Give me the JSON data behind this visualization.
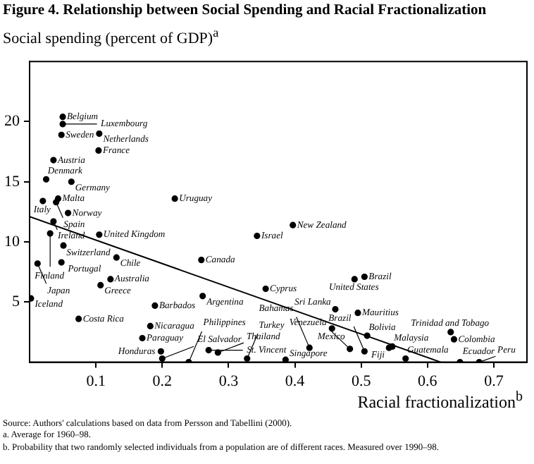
{
  "chart_data": {
    "type": "scatter",
    "title": "Figure 4.  Relationship between Social Spending and Racial Fractionalization",
    "xlabel": "Racial fractionalization$^{b}$",
    "ylabel": "Social spending (percent of GDP)$^{a}$",
    "xlim": [
      0,
      0.75
    ],
    "ylim": [
      0,
      25
    ],
    "xticks": [
      0.1,
      0.2,
      0.3,
      0.4,
      0.5,
      0.6,
      0.7
    ],
    "yticks": [
      5,
      10,
      15,
      20
    ],
    "grid": false,
    "legend": false,
    "series": [
      {
        "marker": "circle",
        "color": "#000000",
        "x": [
          0.05,
          0.05,
          0.048,
          0.105,
          0.104,
          0.036,
          0.025,
          0.063,
          0.02,
          0.043,
          0.04,
          0.058,
          0.036,
          0.031,
          0.105,
          0.051,
          0.219,
          0.343,
          0.397,
          0.012,
          0.048,
          0.131,
          0.259,
          0.122,
          0.107,
          0.002,
          0.261,
          0.189,
          0.074,
          0.182,
          0.17,
          0.198,
          0.2,
          0.24,
          0.27,
          0.284,
          0.328,
          0.505,
          0.49,
          0.356,
          0.461,
          0.495,
          0.456,
          0.509,
          0.547,
          0.542,
          0.567,
          0.635,
          0.64,
          0.483,
          0.422,
          0.505,
          0.386,
          0.649,
          0.678
        ],
        "values": [
          20.4,
          19.8,
          18.9,
          19.0,
          17.6,
          16.8,
          15.2,
          15.0,
          13.4,
          13.6,
          13.3,
          12.4,
          11.7,
          10.7,
          10.6,
          9.7,
          13.6,
          10.5,
          11.4,
          8.2,
          8.3,
          8.7,
          8.5,
          6.9,
          6.4,
          5.3,
          5.5,
          4.7,
          3.6,
          3.0,
          2.0,
          0.9,
          0.3,
          0.0,
          1.0,
          0.8,
          0.3,
          7.1,
          6.9,
          6.1,
          4.4,
          4.1,
          2.8,
          2.2,
          1.3,
          1.2,
          0.3,
          2.5,
          1.9,
          1.1,
          1.2,
          0.9,
          0.2,
          0.0,
          0.0
        ]
      },
      {
        "type": "line",
        "marker": "none",
        "color": "#000000",
        "x": [
          0,
          0.62
        ],
        "values": [
          12.1,
          0
        ]
      }
    ],
    "annotations": [
      {
        "text": "Belgium",
        "x": 0.05,
        "y": 20.4
      },
      {
        "text": "Luxembourg",
        "x": 0.05,
        "y": 19.8
      },
      {
        "text": "Sweden",
        "x": 0.048,
        "y": 18.9
      },
      {
        "text": "Netherlands",
        "x": 0.105,
        "y": 19.0
      },
      {
        "text": "France",
        "x": 0.104,
        "y": 17.6
      },
      {
        "text": "Austria",
        "x": 0.036,
        "y": 16.8
      },
      {
        "text": "Denmark",
        "x": 0.025,
        "y": 15.2
      },
      {
        "text": "Germany",
        "x": 0.063,
        "y": 15.0
      },
      {
        "text": "Italy",
        "x": 0.02,
        "y": 13.4
      },
      {
        "text": "Malta",
        "x": 0.043,
        "y": 13.6
      },
      {
        "text": "Spain",
        "x": 0.04,
        "y": 13.3
      },
      {
        "text": "Norway",
        "x": 0.058,
        "y": 12.4
      },
      {
        "text": "Ireland",
        "x": 0.036,
        "y": 11.7
      },
      {
        "text": "Finland",
        "x": 0.031,
        "y": 10.7
      },
      {
        "text": "United Kingdom",
        "x": 0.105,
        "y": 10.6
      },
      {
        "text": "Switzerland",
        "x": 0.051,
        "y": 9.7
      },
      {
        "text": "Uruguay",
        "x": 0.219,
        "y": 13.6
      },
      {
        "text": "Israel",
        "x": 0.343,
        "y": 10.5
      },
      {
        "text": "New Zealand",
        "x": 0.397,
        "y": 11.4
      },
      {
        "text": "Japan",
        "x": 0.012,
        "y": 8.2
      },
      {
        "text": "Portugal",
        "x": 0.048,
        "y": 8.3
      },
      {
        "text": "Chile",
        "x": 0.131,
        "y": 8.7
      },
      {
        "text": "Canada",
        "x": 0.259,
        "y": 8.5
      },
      {
        "text": "Australia",
        "x": 0.122,
        "y": 6.9
      },
      {
        "text": "Greece",
        "x": 0.107,
        "y": 6.4
      },
      {
        "text": "Iceland",
        "x": 0.002,
        "y": 5.3
      },
      {
        "text": "Argentina",
        "x": 0.261,
        "y": 5.5
      },
      {
        "text": "Barbados",
        "x": 0.189,
        "y": 4.7
      },
      {
        "text": "Costa Rica",
        "x": 0.074,
        "y": 3.6
      },
      {
        "text": "Nicaragua",
        "x": 0.182,
        "y": 3.0
      },
      {
        "text": "Paraguay",
        "x": 0.17,
        "y": 2.0
      },
      {
        "text": "Honduras",
        "x": 0.198,
        "y": 0.9
      },
      {
        "text": "El Salvador",
        "x": 0.2,
        "y": 0.3
      },
      {
        "text": "Philippines",
        "x": 0.24,
        "y": 0.0
      },
      {
        "text": "St. Vincent",
        "x": 0.27,
        "y": 1.0
      },
      {
        "text": "Thailand",
        "x": 0.284,
        "y": 0.8
      },
      {
        "text": "Turkey",
        "x": 0.328,
        "y": 0.3
      },
      {
        "text": "Brazil",
        "x": 0.505,
        "y": 7.1
      },
      {
        "text": "United States",
        "x": 0.49,
        "y": 6.9
      },
      {
        "text": "Cyprus",
        "x": 0.356,
        "y": 6.1
      },
      {
        "text": "Sri Lanka",
        "x": 0.461,
        "y": 4.4
      },
      {
        "text": "Mauritius",
        "x": 0.495,
        "y": 4.1
      },
      {
        "text": "Mexico",
        "x": 0.456,
        "y": 2.8
      },
      {
        "text": "Bolivia",
        "x": 0.509,
        "y": 2.2
      },
      {
        "text": "Malaysia",
        "x": 0.547,
        "y": 1.3
      },
      {
        "text": "Fiji",
        "x": 0.542,
        "y": 1.2
      },
      {
        "text": "Guatemala",
        "x": 0.567,
        "y": 0.3
      },
      {
        "text": "Trinidad and Tobago",
        "x": 0.635,
        "y": 2.5
      },
      {
        "text": "Colombia",
        "x": 0.64,
        "y": 1.9
      },
      {
        "text": "Venezuela",
        "x": 0.483,
        "y": 1.1
      },
      {
        "text": "Bahamas",
        "x": 0.422,
        "y": 1.2
      },
      {
        "text": "Brazil",
        "x": 0.505,
        "y": 0.9
      },
      {
        "text": "Singapore",
        "x": 0.386,
        "y": 0.2
      },
      {
        "text": "Ecuador",
        "x": 0.649,
        "y": 0.0
      },
      {
        "text": "Peru",
        "x": 0.678,
        "y": 0.0
      },
      "Source:  Authors' calculations based on data from Persson and Tabellini (2000).",
      "a. Average for 1960–98.",
      "b. Probability that two randomly selected individuals from a population are of different races. Measured over 1990–98."
    ]
  }
}
